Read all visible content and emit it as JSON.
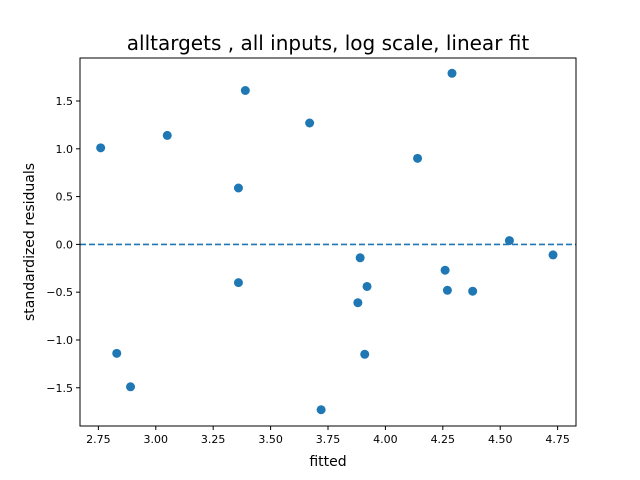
{
  "chart_data": {
    "type": "scatter",
    "title": "alltargets , all inputs, log scale, linear fit",
    "xlabel": "fitted",
    "ylabel": "standardized residuals",
    "xlim": [
      2.67,
      4.83
    ],
    "ylim": [
      -1.9,
      1.95
    ],
    "xticks": [
      2.75,
      3.0,
      3.25,
      3.5,
      3.75,
      4.0,
      4.25,
      4.5,
      4.75
    ],
    "xtick_labels": [
      "2.75",
      "3.00",
      "3.25",
      "3.50",
      "3.75",
      "4.00",
      "4.25",
      "4.50",
      "4.75"
    ],
    "yticks": [
      -1.5,
      -1.0,
      -0.5,
      0.0,
      0.5,
      1.0,
      1.5
    ],
    "ytick_labels": [
      "−1.5",
      "−1.0",
      "−0.5",
      "0.0",
      "0.5",
      "1.0",
      "1.5"
    ],
    "grid": false,
    "reference_line": {
      "y": 0.0,
      "style": "dashed",
      "color": "#1f77b4"
    },
    "point_color": "#1f77b4",
    "points": [
      {
        "x": 2.76,
        "y": 1.01
      },
      {
        "x": 2.83,
        "y": -1.14
      },
      {
        "x": 2.89,
        "y": -1.49
      },
      {
        "x": 3.05,
        "y": 1.14
      },
      {
        "x": 3.36,
        "y": 0.59
      },
      {
        "x": 3.36,
        "y": -0.4
      },
      {
        "x": 3.39,
        "y": 1.61
      },
      {
        "x": 3.67,
        "y": 1.27
      },
      {
        "x": 3.72,
        "y": -1.73
      },
      {
        "x": 3.88,
        "y": -0.61
      },
      {
        "x": 3.89,
        "y": -0.14
      },
      {
        "x": 3.91,
        "y": -1.15
      },
      {
        "x": 3.92,
        "y": -0.44
      },
      {
        "x": 4.14,
        "y": 0.9
      },
      {
        "x": 4.26,
        "y": -0.27
      },
      {
        "x": 4.27,
        "y": -0.48
      },
      {
        "x": 4.29,
        "y": 1.79
      },
      {
        "x": 4.38,
        "y": -0.49
      },
      {
        "x": 4.54,
        "y": 0.04
      },
      {
        "x": 4.73,
        "y": -0.11
      }
    ]
  }
}
